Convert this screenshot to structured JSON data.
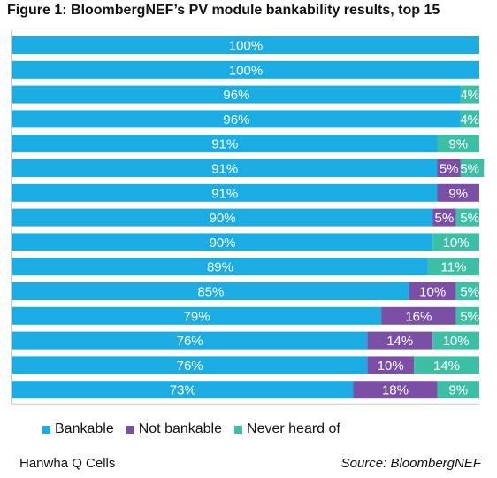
{
  "title": "Figure 1:  BloombergNEF’s PV module bankability results, top 15",
  "colors": {
    "bankable": "#1aace3",
    "not_bankable": "#7b4fa6",
    "never_heard": "#3dbfa6"
  },
  "legend": [
    {
      "label": "Bankable",
      "color_key": "bankable"
    },
    {
      "label": "Not bankable",
      "color_key": "not_bankable"
    },
    {
      "label": "Never heard of",
      "color_key": "never_heard"
    }
  ],
  "footer": {
    "left": "Hanwha Q Cells",
    "right": "Source: BloombergNEF"
  },
  "chart_data": {
    "type": "bar",
    "orientation": "horizontal",
    "stacked": true,
    "xlim": [
      0,
      100
    ],
    "unit": "%",
    "categories": [
      "",
      "",
      "",
      "",
      "",
      "",
      "",
      "",
      "",
      "",
      "",
      "",
      "",
      "",
      ""
    ],
    "series": [
      {
        "name": "Bankable",
        "color": "#1aace3",
        "values": [
          100,
          100,
          96,
          96,
          91,
          91,
          91,
          90,
          90,
          89,
          85,
          79,
          76,
          76,
          73
        ],
        "labels": [
          "100%",
          "100%",
          "96%",
          "96%",
          "91%",
          "91%",
          "91%",
          "90%",
          "90%",
          "89%",
          "85%",
          "79%",
          "76%",
          "76%",
          "73%"
        ]
      },
      {
        "name": "Not bankable",
        "color": "#7b4fa6",
        "values": [
          0,
          0,
          0,
          0,
          0,
          5,
          9,
          5,
          0,
          0,
          10,
          16,
          14,
          10,
          18
        ],
        "labels": [
          "",
          "",
          "",
          "",
          "",
          "5%",
          "9%",
          "5%",
          "",
          "",
          "10%",
          "16%",
          "14%",
          "10%",
          "18%"
        ]
      },
      {
        "name": "Never heard of",
        "color": "#3dbfa6",
        "values": [
          0,
          0,
          4,
          4,
          9,
          5,
          0,
          5,
          10,
          11,
          5,
          5,
          10,
          14,
          9
        ],
        "labels": [
          "",
          "",
          "4%",
          "4%",
          "9%",
          "5%",
          "",
          "5%",
          "10%",
          "11%",
          "5%",
          "5%",
          "10%",
          "14%",
          "9%"
        ]
      }
    ],
    "legend_position": "bottom",
    "grid": false
  }
}
